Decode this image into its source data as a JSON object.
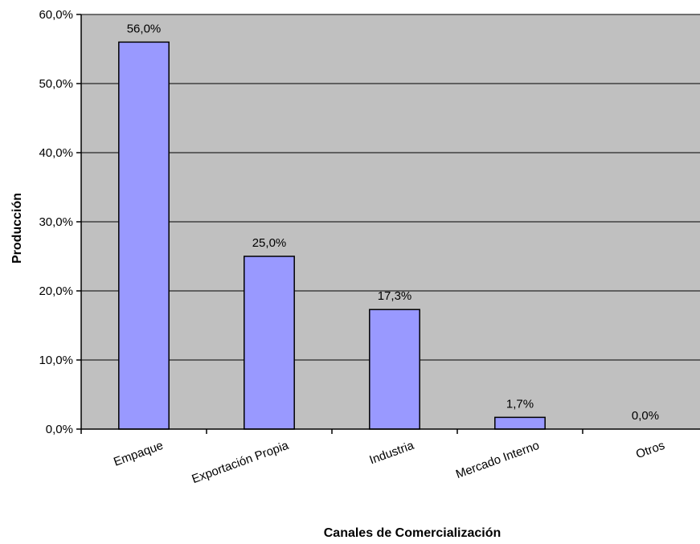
{
  "chart_data": {
    "type": "bar",
    "categories": [
      "Empaque",
      "Exportación Propia",
      "Industria",
      "Mercado Interno",
      "Otros"
    ],
    "values": [
      56.0,
      25.0,
      17.3,
      1.7,
      0.0
    ],
    "data_labels": [
      "56,0%",
      "25,0%",
      "17,3%",
      "1,7%",
      "0,0%"
    ],
    "xlabel": "Canales de Comercialización",
    "ylabel": "Producción",
    "ylim": [
      0,
      60
    ],
    "yticks": [
      0,
      10,
      20,
      30,
      40,
      50,
      60
    ],
    "ytick_labels": [
      "0,0%",
      "10,0%",
      "20,0%",
      "30,0%",
      "40,0%",
      "50,0%",
      "60,0%"
    ],
    "grid": true,
    "colors": {
      "plot_background": "#c0c0c0",
      "bar_fill": "#9999ff",
      "bar_stroke": "#000000",
      "gridline": "#000000"
    }
  }
}
